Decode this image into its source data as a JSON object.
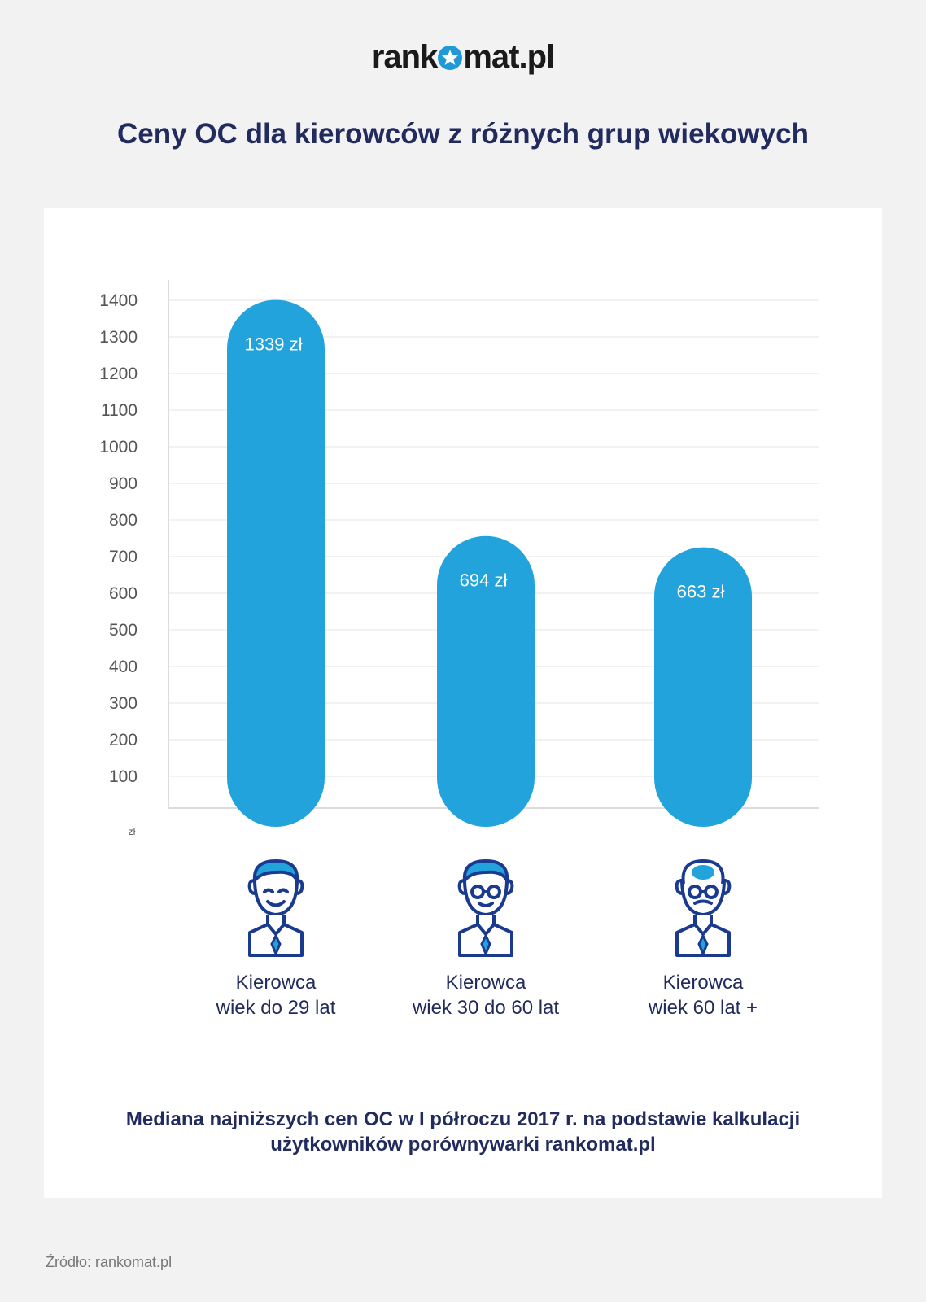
{
  "logo": {
    "before": "rank",
    "after": "mat.pl"
  },
  "title": "Ceny OC dla kierowców z różnych grup wiekowych",
  "chart_data": {
    "type": "bar",
    "categories": [
      [
        "Kierowca",
        "wiek do 29 lat"
      ],
      [
        "Kierowca",
        "wiek 30 do 60 lat"
      ],
      [
        "Kierowca",
        "wiek 60 lat +"
      ]
    ],
    "values": [
      1339,
      694,
      663
    ],
    "value_labels": [
      "1339 zł",
      "694 zł",
      "663 zł"
    ],
    "yticks": [
      100,
      200,
      300,
      400,
      500,
      600,
      700,
      800,
      900,
      1000,
      1100,
      1200,
      1300,
      1400
    ],
    "ylim": [
      0,
      1400
    ],
    "yunit": "zł",
    "grid": true,
    "bar_color": "#22a3dc",
    "icons": [
      "young-man-icon",
      "man-with-glasses-icon",
      "elderly-man-icon"
    ]
  },
  "note": [
    "Mediana najniższych cen OC w I półroczu 2017 r. na podstawie kalkulacji",
    "użytkowników porównywarki rankomat.pl"
  ],
  "source": "Źródło: rankomat.pl"
}
